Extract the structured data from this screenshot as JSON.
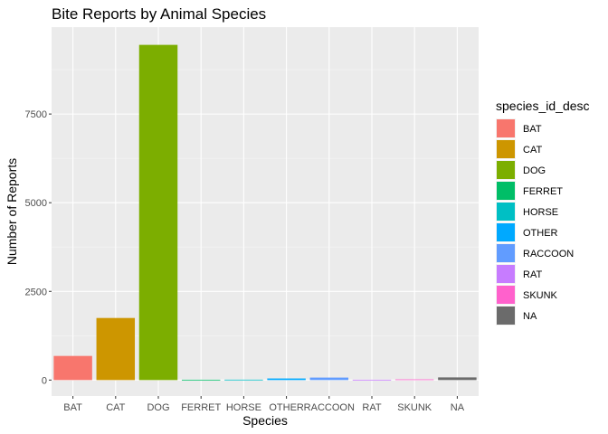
{
  "chart_data": {
    "type": "bar",
    "title": "Bite Reports by Animal Species",
    "xlabel": "Species",
    "ylabel": "Number of Reports",
    "categories": [
      "BAT",
      "CAT",
      "DOG",
      "FERRET",
      "HORSE",
      "OTHER",
      "RACCOON",
      "RAT",
      "SKUNK",
      "NA"
    ],
    "values": [
      680,
      1750,
      9450,
      10,
      12,
      45,
      70,
      10,
      20,
      75
    ],
    "colors": [
      "#F8766D",
      "#CD9600",
      "#7CAE00",
      "#00BE67",
      "#00BFC4",
      "#00A9FF",
      "#619CFF",
      "#C77CFF",
      "#FF61CC",
      "#6B6B6B"
    ],
    "ylim": [
      -450,
      9950
    ],
    "yticks": [
      0,
      2500,
      5000,
      7500
    ],
    "ytick_labels": [
      "0",
      "2500",
      "5000",
      "7500"
    ],
    "grid": true,
    "panel_background": "#EBEBEB",
    "legend": {
      "title": "species_id_desc",
      "position": "right",
      "labels": [
        "BAT",
        "CAT",
        "DOG",
        "FERRET",
        "HORSE",
        "OTHER",
        "RACCOON",
        "RAT",
        "SKUNK",
        "NA"
      ]
    }
  }
}
